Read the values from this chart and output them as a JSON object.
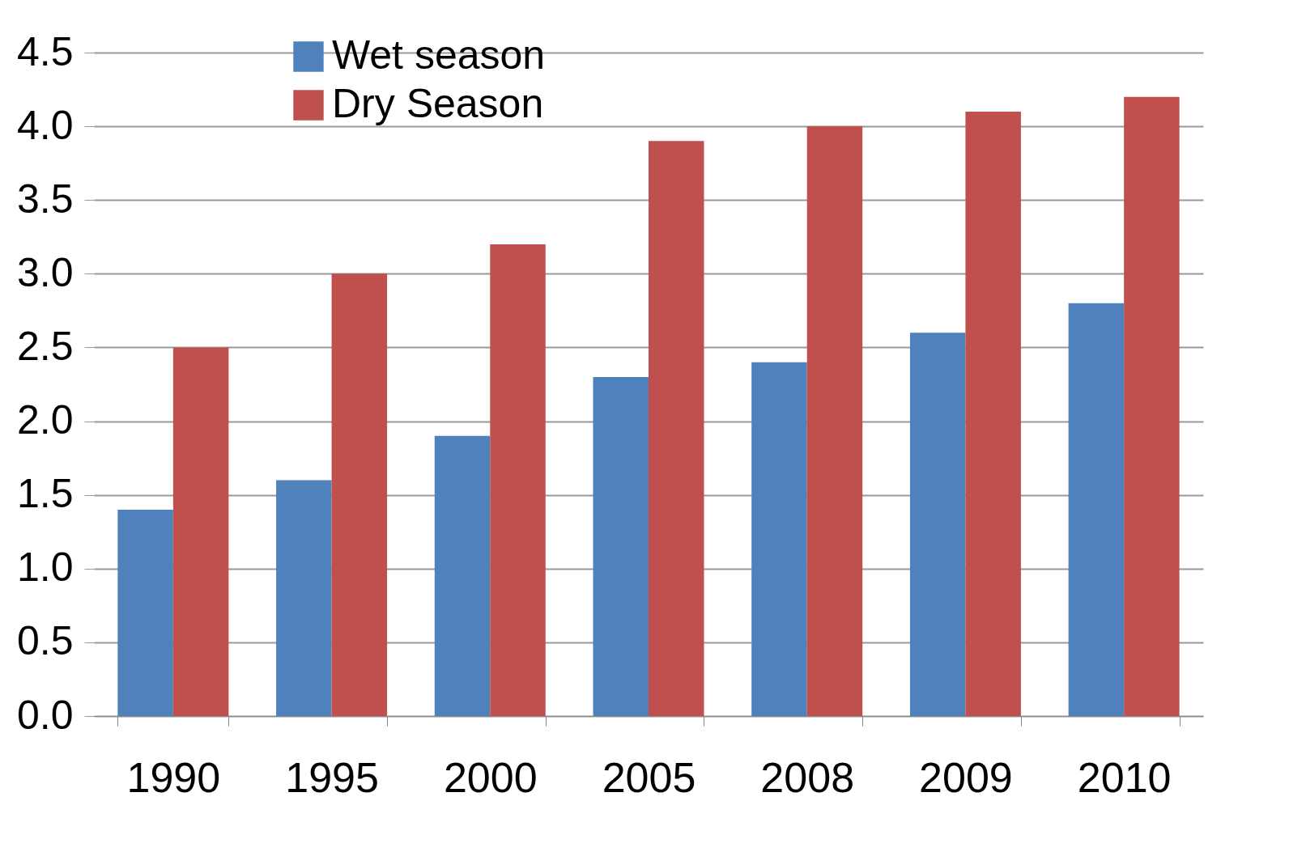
{
  "chart_data": {
    "type": "bar",
    "categories": [
      "1990",
      "1995",
      "2000",
      "2005",
      "2008",
      "2009",
      "2010"
    ],
    "series": [
      {
        "name": "Wet season",
        "color": "#4f81bd",
        "values": [
          1.4,
          1.6,
          1.9,
          2.3,
          2.4,
          2.6,
          2.8
        ]
      },
      {
        "name": "Dry Season",
        "color": "#c0504d",
        "values": [
          2.5,
          3.0,
          3.2,
          3.9,
          4.0,
          4.1,
          4.2
        ]
      }
    ],
    "ylim": [
      0,
      4.5
    ],
    "yticks": [
      {
        "value": 0,
        "label": "0.0"
      },
      0.5,
      {
        "value": 1,
        "label": "1.0"
      },
      1.5,
      {
        "value": 2,
        "label": "2.0"
      },
      2.5,
      {
        "value": 3,
        "label": "3.0"
      },
      3.5,
      {
        "value": 4,
        "label": "4.0"
      },
      4.5
    ],
    "grid": "y",
    "legend": "top left"
  }
}
